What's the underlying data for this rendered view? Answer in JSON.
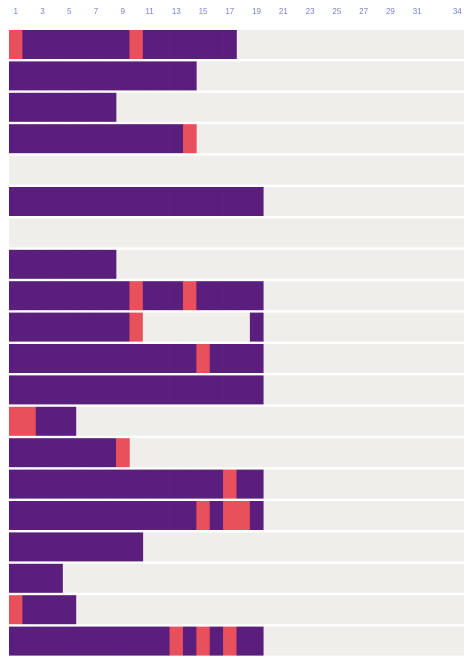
{
  "chart_data": {
    "type": "streak",
    "xlim": [
      1,
      34
    ],
    "xticks": [
      1,
      3,
      5,
      7,
      9,
      11,
      13,
      15,
      17,
      19,
      21,
      23,
      25,
      27,
      29,
      31,
      34
    ],
    "colors": {
      "0": "#efeeea",
      "1": "#5a1e7c",
      "2": "#e8505b"
    },
    "background": "#efeeea",
    "rows": [
      [
        2,
        1,
        1,
        1,
        1,
        1,
        1,
        1,
        1,
        2,
        1,
        1,
        1,
        1,
        1,
        1,
        1
      ],
      [
        1,
        1,
        1,
        1,
        1,
        1,
        1,
        1,
        1,
        1,
        1,
        1,
        1,
        1
      ],
      [
        1,
        1,
        1,
        1,
        1,
        1,
        1,
        1
      ],
      [
        1,
        1,
        1,
        1,
        1,
        1,
        1,
        1,
        1,
        1,
        1,
        1,
        1,
        2
      ],
      [],
      [
        1,
        1,
        1,
        1,
        1,
        1,
        1,
        1,
        1,
        1,
        1,
        1,
        1,
        1,
        1,
        1,
        1,
        1,
        1
      ],
      [],
      [
        1,
        1,
        1,
        1,
        1,
        1,
        1,
        1
      ],
      [
        1,
        1,
        1,
        1,
        1,
        1,
        1,
        1,
        1,
        2,
        1,
        1,
        1,
        2,
        1,
        1,
        1,
        1,
        1
      ],
      [
        1,
        1,
        1,
        1,
        1,
        1,
        1,
        1,
        1,
        2,
        0,
        0,
        0,
        0,
        0,
        0,
        0,
        0,
        1
      ],
      [
        1,
        1,
        1,
        1,
        1,
        1,
        1,
        1,
        1,
        1,
        1,
        1,
        1,
        1,
        2,
        1,
        1,
        1,
        1
      ],
      [
        1,
        1,
        1,
        1,
        1,
        1,
        1,
        1,
        1,
        1,
        1,
        1,
        1,
        1,
        1,
        1,
        1,
        1,
        1
      ],
      [
        2,
        2,
        1,
        1,
        1
      ],
      [
        1,
        1,
        1,
        1,
        1,
        1,
        1,
        1,
        2
      ],
      [
        1,
        1,
        1,
        1,
        1,
        1,
        1,
        1,
        1,
        1,
        1,
        1,
        1,
        1,
        1,
        1,
        2,
        1,
        1
      ],
      [
        1,
        1,
        1,
        1,
        1,
        1,
        1,
        1,
        1,
        1,
        1,
        1,
        1,
        1,
        2,
        1,
        2,
        2,
        1
      ],
      [
        1,
        1,
        1,
        1,
        1,
        1,
        1,
        1,
        1,
        1
      ],
      [
        1,
        1,
        1,
        1
      ],
      [
        2,
        1,
        1,
        1,
        1
      ],
      [
        1,
        1,
        1,
        1,
        1,
        1,
        1,
        1,
        1,
        1,
        1,
        1,
        2,
        1,
        2,
        1,
        2,
        1,
        1
      ]
    ]
  }
}
